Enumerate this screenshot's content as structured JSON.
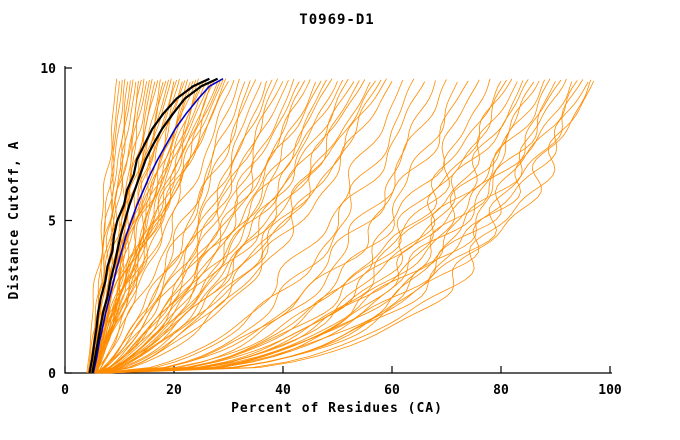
{
  "chart_data": {
    "type": "line",
    "title": "T0969-D1",
    "xlabel": "Percent of Residues (CA)",
    "ylabel": "Distance Cutoff, A",
    "xlim": [
      0,
      100
    ],
    "ylim": [
      0,
      10
    ],
    "xticks": [
      0,
      20,
      40,
      60,
      80,
      100
    ],
    "yticks": [
      0,
      5,
      10
    ],
    "grid": false,
    "legend": null,
    "colors": {
      "predictions": "#FF8C00",
      "black_curves": "#000000",
      "blue_curve": "#0000CD",
      "axis": "#000000",
      "background": "#FFFFFF"
    },
    "prediction_curves": {
      "format": [
        "x_at_bottom",
        "x_at_top",
        "shape_exponent"
      ],
      "y_top": 9.65,
      "params": [
        [
          4.0,
          9.5,
          1.0
        ],
        [
          4.5,
          10,
          0.9
        ],
        [
          5,
          10.5,
          1.1
        ],
        [
          4.2,
          11,
          0.95
        ],
        [
          5.5,
          11.5,
          1.05
        ],
        [
          4.8,
          12,
          0.85
        ],
        [
          5.2,
          12.5,
          1.15
        ],
        [
          4.4,
          13,
          1.0
        ],
        [
          5.8,
          13.5,
          0.9
        ],
        [
          4.6,
          14,
          1.1
        ],
        [
          5.0,
          14.5,
          0.8
        ],
        [
          5.4,
          15,
          1.2
        ],
        [
          4.3,
          15.5,
          0.95
        ],
        [
          5.9,
          16,
          1.05
        ],
        [
          4.7,
          16.5,
          0.9
        ],
        [
          5.1,
          17,
          1.1
        ],
        [
          5.6,
          17.5,
          0.85
        ],
        [
          4.9,
          18,
          1.0
        ],
        [
          5.3,
          18.5,
          1.15
        ],
        [
          4.5,
          19,
          0.9
        ],
        [
          5.7,
          19.5,
          1.05
        ],
        [
          5.0,
          20,
          0.95
        ],
        [
          4.6,
          20.5,
          1.1
        ],
        [
          5.4,
          21,
          0.85
        ],
        [
          5.8,
          21.5,
          1.0
        ],
        [
          4.8,
          22,
          1.2
        ],
        [
          5.2,
          22.5,
          0.9
        ],
        [
          5.6,
          23,
          1.05
        ],
        [
          4.9,
          23.5,
          0.95
        ],
        [
          5.3,
          24,
          1.1
        ],
        [
          5.7,
          24.5,
          0.9
        ],
        [
          5.0,
          25,
          1.0
        ],
        [
          5.5,
          25.5,
          1.15
        ],
        [
          4.7,
          26,
          0.9
        ],
        [
          5.9,
          26.5,
          1.05
        ],
        [
          5.1,
          27,
          0.95
        ],
        [
          5.5,
          27.5,
          1.1
        ],
        [
          6.0,
          28,
          0.9
        ],
        [
          5.2,
          28.5,
          1.0
        ],
        [
          5.6,
          29,
          1.05
        ],
        [
          6.1,
          29.5,
          0.95
        ],
        [
          5.3,
          30,
          1.1
        ],
        [
          5.0,
          31,
          0.8
        ],
        [
          5.5,
          32,
          0.7
        ],
        [
          6.0,
          33,
          0.75
        ],
        [
          5.2,
          34,
          0.65
        ],
        [
          5.7,
          35,
          0.8
        ],
        [
          6.2,
          36,
          0.7
        ],
        [
          5.4,
          37,
          0.6
        ],
        [
          5.9,
          38,
          0.75
        ],
        [
          6.4,
          39,
          0.65
        ],
        [
          5.6,
          40,
          0.8
        ],
        [
          6.1,
          41,
          0.7
        ],
        [
          5.8,
          42,
          0.6
        ],
        [
          6.3,
          43,
          0.75
        ],
        [
          6.0,
          44,
          0.65
        ],
        [
          5.5,
          45,
          0.7
        ],
        [
          6.5,
          46,
          0.6
        ],
        [
          6.2,
          47,
          0.75
        ],
        [
          5.7,
          48,
          0.65
        ],
        [
          6.4,
          49,
          0.7
        ],
        [
          6.0,
          50,
          0.6
        ],
        [
          6.6,
          51,
          0.72
        ],
        [
          5.8,
          52,
          0.62
        ],
        [
          6.3,
          53,
          0.7
        ],
        [
          6.8,
          54,
          0.58
        ],
        [
          6.1,
          55,
          0.68
        ],
        [
          6.5,
          56,
          0.6
        ],
        [
          5.9,
          57,
          0.66
        ],
        [
          6.7,
          58,
          0.56
        ],
        [
          6.2,
          59,
          0.64
        ],
        [
          6.9,
          60,
          0.6
        ],
        [
          6.0,
          62,
          0.44
        ],
        [
          6.5,
          64,
          0.4
        ],
        [
          7.0,
          66,
          0.46
        ],
        [
          6.2,
          68,
          0.36
        ],
        [
          6.8,
          70,
          0.42
        ],
        [
          7.2,
          72,
          0.35
        ],
        [
          6.4,
          74,
          0.44
        ],
        [
          7.0,
          76,
          0.38
        ],
        [
          6.6,
          78,
          0.33
        ],
        [
          7.4,
          80,
          0.4
        ],
        [
          6.8,
          81,
          0.35
        ],
        [
          7.1,
          82,
          0.44
        ],
        [
          6.5,
          83,
          0.37
        ],
        [
          7.3,
          84,
          0.33
        ],
        [
          6.9,
          85,
          0.4
        ],
        [
          7.5,
          86,
          0.35
        ],
        [
          7.0,
          87,
          0.38
        ],
        [
          6.7,
          88,
          0.33
        ],
        [
          7.6,
          89,
          0.36
        ],
        [
          7.2,
          90,
          0.31
        ],
        [
          6.9,
          91,
          0.38
        ],
        [
          7.7,
          92,
          0.35
        ],
        [
          7.3,
          93,
          0.32
        ],
        [
          7.0,
          94,
          0.36
        ],
        [
          7.8,
          95,
          0.33
        ],
        [
          7.4,
          96,
          0.34
        ],
        [
          7.1,
          97,
          0.3
        ],
        [
          7.9,
          96.5,
          0.29
        ]
      ]
    },
    "black_curves": [
      [
        [
          4.5,
          0
        ],
        [
          5.0,
          0.5
        ],
        [
          5.4,
          1.0
        ],
        [
          5.8,
          1.5
        ],
        [
          6.1,
          2.0
        ],
        [
          6.6,
          2.5
        ],
        [
          7.4,
          3.0
        ],
        [
          7.8,
          3.5
        ],
        [
          8.7,
          4.0
        ],
        [
          9.0,
          4.5
        ],
        [
          9.6,
          5.0
        ],
        [
          10.8,
          5.5
        ],
        [
          11.4,
          6.0
        ],
        [
          12.6,
          6.5
        ],
        [
          13.2,
          7.0
        ],
        [
          14.6,
          7.5
        ],
        [
          16.0,
          8.0
        ],
        [
          18.0,
          8.5
        ],
        [
          20.5,
          9.0
        ],
        [
          23.5,
          9.4
        ],
        [
          26.5,
          9.65
        ]
      ],
      [
        [
          5.0,
          0
        ],
        [
          5.5,
          0.5
        ],
        [
          6.0,
          1.0
        ],
        [
          6.5,
          1.5
        ],
        [
          7.0,
          2.0
        ],
        [
          7.8,
          2.5
        ],
        [
          8.3,
          3.0
        ],
        [
          9.0,
          3.5
        ],
        [
          9.6,
          4.0
        ],
        [
          10.2,
          4.5
        ],
        [
          11.0,
          5.0
        ],
        [
          11.8,
          5.5
        ],
        [
          12.8,
          6.0
        ],
        [
          13.8,
          6.5
        ],
        [
          14.8,
          7.0
        ],
        [
          16.2,
          7.5
        ],
        [
          17.8,
          8.0
        ],
        [
          19.8,
          8.5
        ],
        [
          22.0,
          9.0
        ],
        [
          25.0,
          9.4
        ],
        [
          28.0,
          9.65
        ]
      ]
    ],
    "blue_curve": [
      [
        5.2,
        0
      ],
      [
        5.8,
        0.5
      ],
      [
        6.3,
        1.0
      ],
      [
        6.9,
        1.5
      ],
      [
        7.5,
        2.0
      ],
      [
        8.2,
        2.5
      ],
      [
        8.9,
        3.0
      ],
      [
        9.6,
        3.5
      ],
      [
        10.4,
        4.0
      ],
      [
        11.2,
        4.5
      ],
      [
        12.2,
        5.0
      ],
      [
        13.2,
        5.5
      ],
      [
        14.4,
        6.0
      ],
      [
        15.6,
        6.5
      ],
      [
        17.0,
        7.0
      ],
      [
        18.6,
        7.5
      ],
      [
        20.2,
        8.0
      ],
      [
        22.2,
        8.5
      ],
      [
        24.5,
        9.0
      ],
      [
        26.5,
        9.4
      ],
      [
        29.0,
        9.65
      ]
    ]
  }
}
